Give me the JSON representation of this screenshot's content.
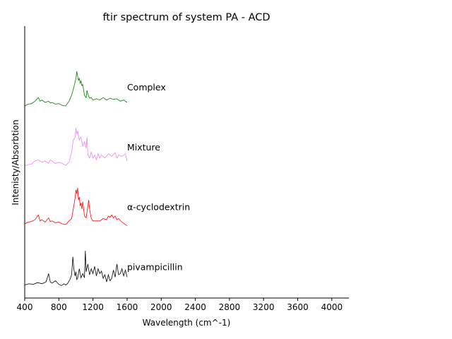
{
  "chart_data": {
    "type": "line",
    "title": "ftir spectrum of system PA - ACD",
    "xlabel": "Wavelength (cm^-1)",
    "ylabel": "Intenisty/Absorbtion",
    "xlim": [
      400,
      4200
    ],
    "ylim": [
      0,
      4
    ],
    "x_ticks": [
      "400",
      "800",
      "1200",
      "1600",
      "2000",
      "2400",
      "2800",
      "3200",
      "3600",
      "4000"
    ],
    "y_ticks_shown": false,
    "grid": false,
    "legend": "none (series labelled inline at right end of each trace)",
    "series": [
      {
        "name": "pivampicillin",
        "color": "#000000",
        "offset": 0,
        "x": [
          400,
          450,
          500,
          550,
          600,
          650,
          680,
          700,
          720,
          760,
          800,
          830,
          860,
          880,
          900,
          930,
          950,
          965,
          975,
          990,
          1000,
          1010,
          1020,
          1040,
          1060,
          1080,
          1100,
          1110,
          1120,
          1140,
          1160,
          1180,
          1200,
          1220,
          1240,
          1260,
          1280,
          1300,
          1320,
          1340,
          1360,
          1380,
          1400,
          1420,
          1440,
          1460,
          1480,
          1500,
          1520,
          1540,
          1560,
          1580,
          1600
        ],
        "y": [
          0.03,
          0.05,
          0.04,
          0.07,
          0.05,
          0.08,
          0.22,
          0.08,
          0.06,
          0.1,
          0.04,
          0.02,
          0.05,
          0.03,
          0.05,
          0.12,
          0.2,
          0.5,
          0.3,
          0.18,
          0.25,
          0.12,
          0.14,
          0.3,
          0.15,
          0.22,
          0.15,
          0.6,
          0.25,
          0.38,
          0.2,
          0.3,
          0.22,
          0.34,
          0.18,
          0.3,
          0.22,
          0.26,
          0.14,
          0.2,
          0.08,
          0.2,
          0.1,
          0.14,
          0.28,
          0.16,
          0.38,
          0.2,
          0.22,
          0.3,
          0.18,
          0.28,
          0.16
        ]
      },
      {
        "name": "α-cyclodextrin",
        "color": "#ff0000",
        "offset": 1,
        "x": [
          400,
          440,
          480,
          520,
          560,
          580,
          600,
          640,
          680,
          700,
          720,
          760,
          800,
          840,
          880,
          920,
          950,
          970,
          990,
          1000,
          1010,
          1020,
          1030,
          1040,
          1050,
          1060,
          1070,
          1080,
          1100,
          1120,
          1140,
          1150,
          1160,
          1180,
          1200,
          1240,
          1280,
          1320,
          1360,
          1380,
          1400,
          1420,
          1440,
          1460,
          1480,
          1500,
          1540,
          1600
        ],
        "y": [
          0.05,
          0.08,
          0.09,
          0.12,
          0.2,
          0.1,
          0.12,
          0.08,
          0.15,
          0.09,
          0.1,
          0.07,
          0.08,
          0.05,
          0.04,
          0.1,
          0.14,
          0.3,
          0.48,
          0.62,
          0.55,
          0.65,
          0.45,
          0.5,
          0.35,
          0.4,
          0.3,
          0.42,
          0.18,
          0.15,
          0.35,
          0.45,
          0.3,
          0.14,
          0.1,
          0.1,
          0.1,
          0.14,
          0.12,
          0.18,
          0.16,
          0.2,
          0.15,
          0.18,
          0.12,
          0.14,
          0.08,
          0.02
        ]
      },
      {
        "name": "Mixture",
        "color": "#ee82ee",
        "offset": 2,
        "x": [
          400,
          440,
          480,
          520,
          560,
          600,
          640,
          680,
          700,
          720,
          760,
          800,
          840,
          880,
          920,
          950,
          970,
          990,
          1000,
          1010,
          1020,
          1040,
          1060,
          1080,
          1100,
          1120,
          1130,
          1140,
          1160,
          1180,
          1200,
          1220,
          1240,
          1260,
          1280,
          1300,
          1340,
          1380,
          1420,
          1460,
          1480,
          1500,
          1540,
          1580,
          1600
        ],
        "y": [
          0.02,
          0.04,
          0.05,
          0.1,
          0.12,
          0.08,
          0.1,
          0.06,
          0.12,
          0.1,
          0.06,
          0.08,
          0.06,
          0.03,
          0.08,
          0.25,
          0.45,
          0.5,
          0.65,
          0.55,
          0.6,
          0.45,
          0.5,
          0.35,
          0.42,
          0.32,
          0.5,
          0.2,
          0.15,
          0.25,
          0.15,
          0.2,
          0.12,
          0.22,
          0.15,
          0.2,
          0.15,
          0.22,
          0.18,
          0.24,
          0.15,
          0.2,
          0.18,
          0.22,
          0.1
        ]
      },
      {
        "name": "Complex",
        "color": "#008000",
        "offset": 3,
        "x": [
          400,
          440,
          480,
          520,
          560,
          580,
          600,
          640,
          680,
          700,
          720,
          760,
          800,
          840,
          880,
          920,
          950,
          970,
          990,
          1000,
          1010,
          1020,
          1030,
          1040,
          1050,
          1060,
          1070,
          1080,
          1100,
          1120,
          1130,
          1140,
          1160,
          1180,
          1200,
          1240,
          1280,
          1320,
          1360,
          1400,
          1440,
          1480,
          1520,
          1560,
          1600
        ],
        "y": [
          0.02,
          0.05,
          0.06,
          0.1,
          0.16,
          0.1,
          0.12,
          0.08,
          0.1,
          0.07,
          0.08,
          0.05,
          0.06,
          0.03,
          0.02,
          0.1,
          0.2,
          0.3,
          0.42,
          0.48,
          0.6,
          0.52,
          0.45,
          0.48,
          0.4,
          0.44,
          0.36,
          0.38,
          0.2,
          0.16,
          0.28,
          0.22,
          0.15,
          0.16,
          0.12,
          0.14,
          0.12,
          0.16,
          0.12,
          0.15,
          0.13,
          0.14,
          0.1,
          0.12,
          0.08
        ]
      }
    ]
  }
}
